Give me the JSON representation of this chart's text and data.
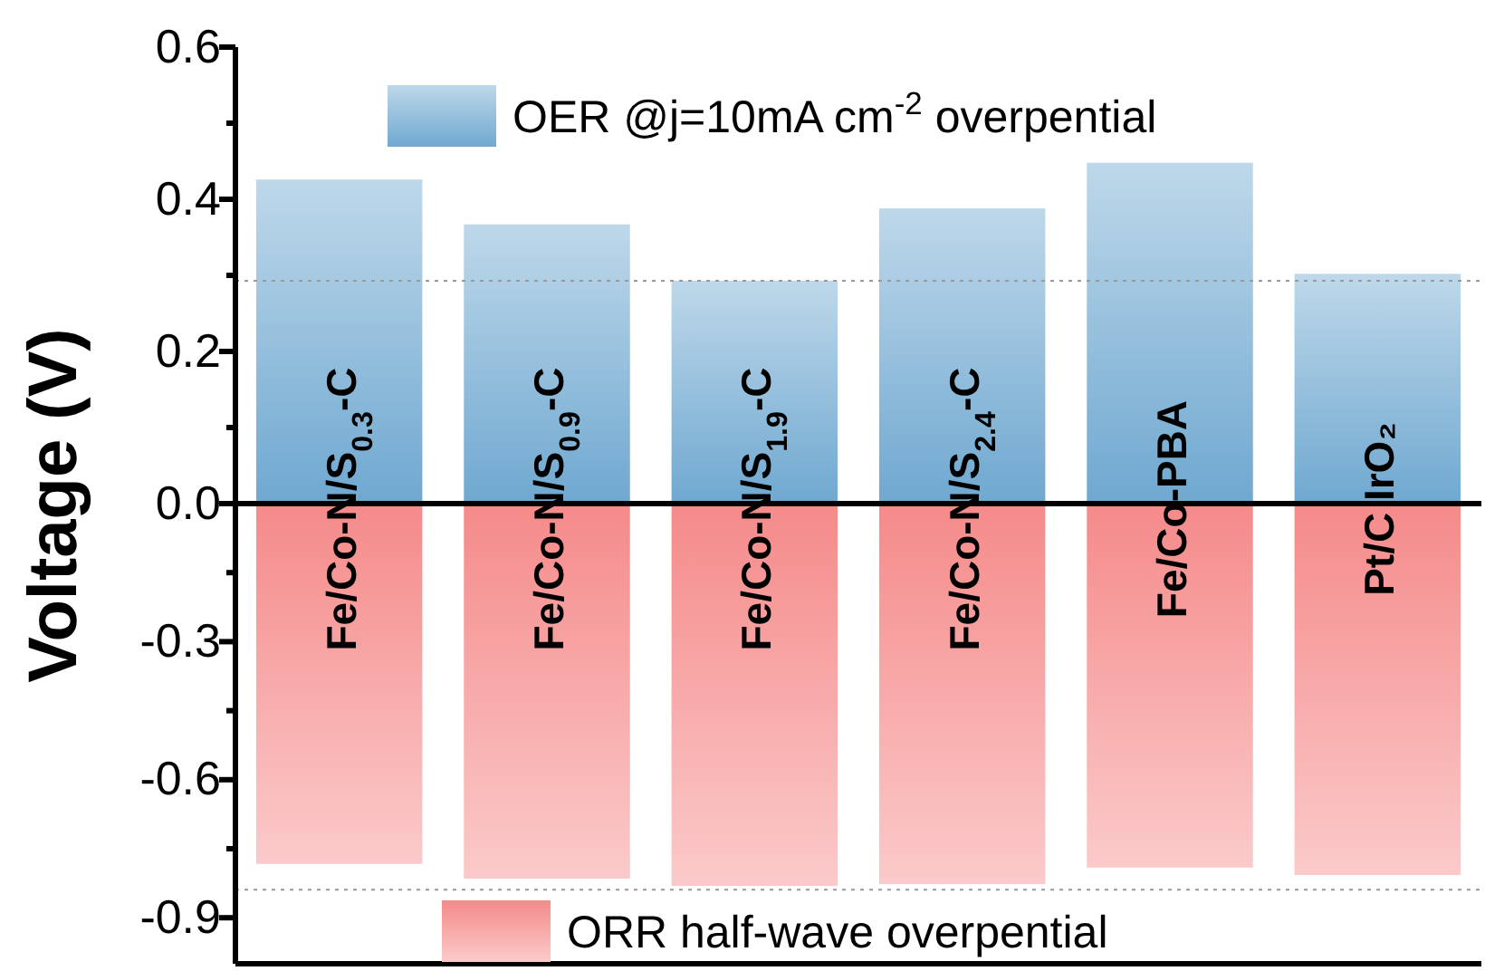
{
  "chart_data": [
    {
      "type": "bar",
      "ylabel": "Voltage (V)",
      "categories": [
        "Fe/Co-N/S$_{0.3}$-C",
        "Fe/Co-N/S$_{0.9}$-C",
        "Fe/Co-N/S$_{1.9}$-C",
        "Fe/Co-N/S$_{2.4}$-C",
        "Fe/Co-PBA",
        "Pt/C IrO₂"
      ],
      "series": [
        {
          "name": "OER @j=10mA cm$^{-2}$ overpential",
          "color": "#6fa8d0",
          "values": [
            0.426,
            0.367,
            0.293,
            0.388,
            0.448,
            0.302
          ]
        }
      ],
      "ylim": [
        0,
        0.6
      ],
      "yticks": [
        {
          "value": 0,
          "label": "0.0"
        },
        {
          "value": 0.1,
          "label": null
        },
        {
          "value": 0.2,
          "label": "0.2"
        },
        {
          "value": 0.3,
          "label": null
        },
        {
          "value": 0.4,
          "label": "0.4"
        },
        {
          "value": 0.5,
          "label": null
        },
        {
          "value": 0.6,
          "label": "0.6"
        }
      ],
      "ref_lines": [
        {
          "axis": "y",
          "value": 0.293,
          "color": "#999999",
          "line_style": "dotted"
        }
      ],
      "legend": "top",
      "grid": false
    },
    {
      "type": "bar",
      "categories": [
        null,
        null,
        null,
        null,
        null,
        null
      ],
      "series": [
        {
          "name": "ORR half-wave overpential",
          "color": "#f58a8a",
          "values": [
            -0.783,
            -0.815,
            -0.831,
            -0.827,
            -0.791,
            -0.807
          ]
        }
      ],
      "ylim": [
        -1.0,
        0
      ],
      "yticks": [
        {
          "value": -0.15,
          "label": null
        },
        {
          "value": -0.3,
          "label": "-0.3"
        },
        {
          "value": -0.45,
          "label": null
        },
        {
          "value": -0.6,
          "label": "-0.6"
        },
        {
          "value": -0.75,
          "label": null
        },
        {
          "value": -0.9,
          "label": "-0.9"
        }
      ],
      "ref_lines": [
        {
          "axis": "y",
          "value": -0.839,
          "color": "#999999",
          "line_style": "dotted"
        }
      ],
      "legend": "bottom",
      "grid": false
    }
  ]
}
